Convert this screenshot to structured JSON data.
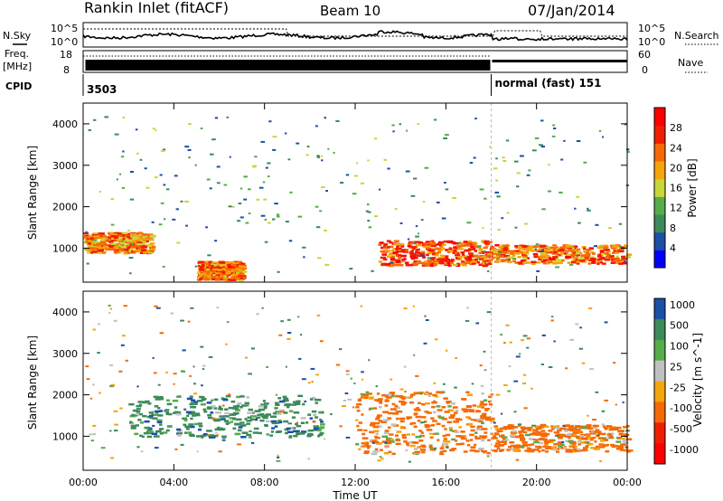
{
  "header": {
    "station": "Rankin Inlet (fitACF)",
    "beam": "Beam 10",
    "date": "07/Jan/2014"
  },
  "left_labels": {
    "nsky": "N.Sky",
    "freq": "Freq.",
    "freq_unit": "[MHz]",
    "cpid": "CPID"
  },
  "right_labels": {
    "nsearch": "N.Search",
    "nave": "Nave"
  },
  "noise_axis": {
    "left_top": "10^5",
    "left_bottom": "10^0",
    "right_top": "10^5",
    "right_bottom": "10^0"
  },
  "freq_axis": {
    "left_top": "18",
    "left_bottom": "8",
    "right_top": "60",
    "right_bottom": "0"
  },
  "cpid": {
    "segments": [
      {
        "label": "3503",
        "start_hour": 0,
        "end_hour": 18.0
      },
      {
        "label": "normal (fast) 151",
        "start_hour": 18.0,
        "end_hour": 24
      }
    ]
  },
  "colors": {
    "power": [
      "#0000ff",
      "#1b4fa8",
      "#3c8a5a",
      "#56ab4b",
      "#c8d639",
      "#f5a40a",
      "#f56a06",
      "#f01e00",
      "#ff0000"
    ],
    "velocity": [
      "#1b4fa8",
      "#3c8a5a",
      "#56ab4b",
      "#c0c0c0",
      "#f5a40a",
      "#f56a06",
      "#f01e00",
      "#ff0000"
    ]
  },
  "chart_data": [
    {
      "type": "heatmap",
      "title": "",
      "xlabel": "",
      "ylabel": "Slant Range [km]",
      "x_unit": "hour UT",
      "xlim": [
        0,
        24
      ],
      "ylim": [
        180,
        4500
      ],
      "xticks": [
        "00:00",
        "04:00",
        "08:00",
        "12:00",
        "16:00",
        "20:00",
        "00:00"
      ],
      "yticks": [
        1000,
        2000,
        3000,
        4000
      ],
      "colorbar": {
        "label": "Power [dB]",
        "ticks": [
          4,
          8,
          12,
          16,
          20,
          24,
          28
        ],
        "range": [
          0,
          32
        ]
      },
      "features": [
        {
          "name": "near-range band",
          "hours": [
            0,
            3
          ],
          "range_km": [
            900,
            1400
          ],
          "dB": 24
        },
        {
          "name": "afternoon band",
          "hours": [
            13,
            18
          ],
          "range_km": [
            600,
            1200
          ],
          "dB": 28
        },
        {
          "name": "evening band",
          "hours": [
            18,
            24
          ],
          "range_km": [
            650,
            1100
          ],
          "dB": 26
        },
        {
          "name": "morning patch",
          "hours": [
            5,
            7
          ],
          "range_km": [
            250,
            700
          ],
          "dB": 26
        }
      ]
    },
    {
      "type": "heatmap",
      "title": "",
      "xlabel": "Time UT",
      "ylabel": "Slant Range [km]",
      "x_unit": "hour UT",
      "xlim": [
        0,
        24
      ],
      "ylim": [
        180,
        4500
      ],
      "xticks": [
        "00:00",
        "04:00",
        "08:00",
        "12:00",
        "16:00",
        "20:00",
        "00:00"
      ],
      "yticks": [
        1000,
        2000,
        3000,
        4000
      ],
      "colorbar": {
        "label": "Velocity [m s^-1]",
        "ticks": [
          "1000",
          "500",
          "100",
          "25",
          "-25",
          "-100",
          "-500",
          "-1000"
        ]
      },
      "features": [
        {
          "name": "westward flow",
          "hours": [
            2,
            10.5
          ],
          "range_km": [
            1000,
            2000
          ],
          "velocity": 300
        },
        {
          "name": "eastward flow",
          "hours": [
            12,
            18
          ],
          "range_km": [
            600,
            2100
          ],
          "velocity": -300
        },
        {
          "name": "evening eastward",
          "hours": [
            18,
            24
          ],
          "range_km": [
            650,
            1300
          ],
          "velocity": -300
        }
      ]
    }
  ]
}
